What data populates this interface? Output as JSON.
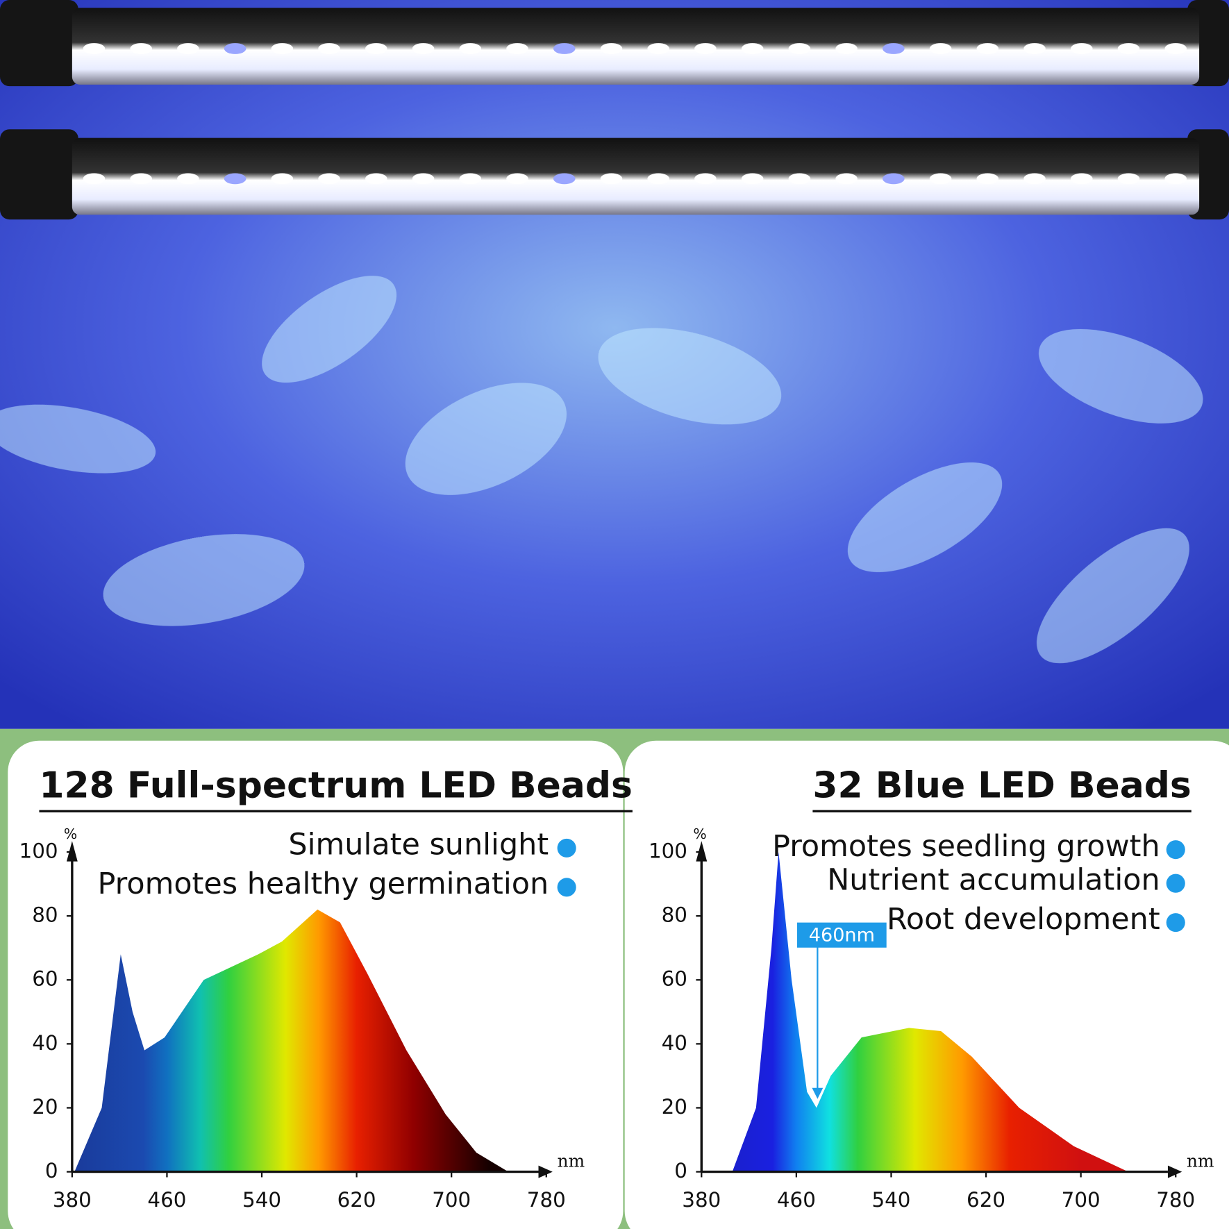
{
  "chart_data": [
    {
      "type": "area",
      "title": "128 Full-spectrum LED Beads",
      "notes": [
        "Simulate sunlight",
        "Promotes healthy germination"
      ],
      "y_unit": "%",
      "x_unit": "nm",
      "x": [
        382,
        405,
        421,
        431,
        441,
        458,
        491,
        537,
        557,
        587,
        606,
        629,
        662,
        695,
        721,
        748
      ],
      "values": [
        0,
        20,
        68,
        50,
        38,
        42,
        60,
        68,
        72,
        82,
        78,
        62,
        38,
        18,
        6,
        0
      ],
      "xlim": [
        380,
        780
      ],
      "ylim": [
        0,
        100
      ],
      "xticks": [
        380,
        460,
        540,
        620,
        700,
        780
      ],
      "yticks": [
        0,
        20,
        40,
        60,
        80,
        100
      ]
    },
    {
      "type": "area",
      "title": "32 Blue LED Beads",
      "notes": [
        "Promotes seedling growth",
        "Nutrient accumulation",
        "Root development"
      ],
      "y_unit": "%",
      "x_unit": "nm",
      "annotation": "460nm",
      "x": [
        406,
        426,
        439,
        445,
        456,
        469,
        477,
        489,
        515,
        555,
        582,
        608,
        648,
        694,
        740
      ],
      "values": [
        0,
        20,
        70,
        100,
        60,
        25,
        20,
        30,
        42,
        45,
        44,
        36,
        20,
        8,
        0
      ],
      "xlim": [
        380,
        780
      ],
      "ylim": [
        0,
        100
      ],
      "xticks": [
        380,
        460,
        540,
        620,
        700,
        780
      ],
      "yticks": [
        0,
        20,
        40,
        60,
        80,
        100
      ]
    }
  ]
}
